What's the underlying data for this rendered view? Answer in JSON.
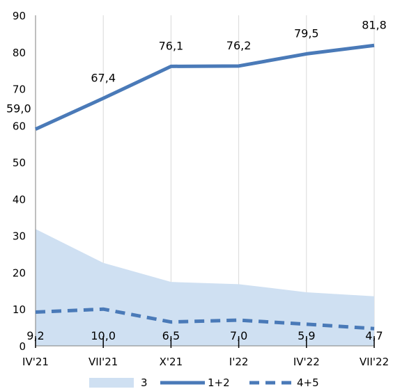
{
  "chart_data": {
    "type": "line",
    "categories": [
      "IV'21",
      "VII'21",
      "X'21",
      "I'22",
      "IV'22",
      "VII'22"
    ],
    "ylim": [
      0,
      90
    ],
    "yticks": [
      0,
      10,
      20,
      30,
      40,
      50,
      60,
      70,
      80,
      90
    ],
    "grid": "vertical",
    "legend_position": "bottom",
    "series": [
      {
        "name": "3",
        "kind": "area",
        "color": "#cfe0f2",
        "values": [
          31.8,
          22.6,
          17.4,
          16.8,
          14.6,
          13.5
        ],
        "labels": []
      },
      {
        "name": "1+2",
        "kind": "line",
        "style": "solid",
        "color": "#4a7ab8",
        "values": [
          59.0,
          67.4,
          76.1,
          76.2,
          79.5,
          81.8
        ],
        "labels": [
          "59,0",
          "67,4",
          "76,1",
          "76,2",
          "79,5",
          "81,8"
        ]
      },
      {
        "name": "4+5",
        "kind": "line",
        "style": "dashed",
        "color": "#4a7ab8",
        "values": [
          9.2,
          10.0,
          6.5,
          7.0,
          5.9,
          4.7
        ],
        "labels": [
          "9,2",
          "10,0",
          "6,5",
          "7,0",
          "5,9",
          "4,7"
        ]
      }
    ]
  }
}
